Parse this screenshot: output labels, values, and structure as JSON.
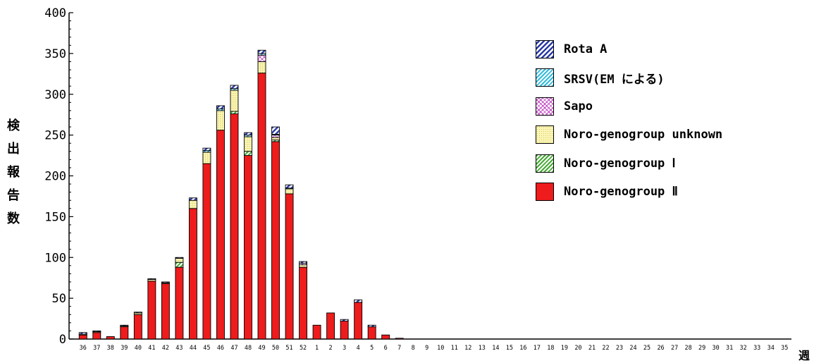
{
  "chart_data": {
    "type": "bar",
    "stacked": true,
    "ylabel": "検出報告数",
    "xunit": "週",
    "ylim": [
      0,
      400
    ],
    "yticks": [
      0,
      50,
      100,
      150,
      200,
      250,
      300,
      350,
      400
    ],
    "categories": [
      "36",
      "37",
      "38",
      "39",
      "40",
      "41",
      "42",
      "43",
      "44",
      "45",
      "46",
      "47",
      "48",
      "49",
      "50",
      "51",
      "52",
      "1",
      "2",
      "3",
      "4",
      "5",
      "6",
      "7",
      "8",
      "9",
      "10",
      "11",
      "12",
      "13",
      "14",
      "15",
      "16",
      "17",
      "18",
      "19",
      "20",
      "21",
      "22",
      "23",
      "24",
      "25",
      "26",
      "27",
      "28",
      "29",
      "30",
      "31",
      "32",
      "33",
      "34",
      "35"
    ],
    "series": [
      {
        "name": "Noro-genogroup Ⅱ",
        "color": "#ee2020",
        "pattern": "solid",
        "values": [
          5,
          8,
          3,
          15,
          30,
          71,
          68,
          88,
          160,
          215,
          256,
          276,
          225,
          326,
          242,
          178,
          88,
          17,
          32,
          22,
          45,
          15,
          5,
          1,
          0,
          0,
          0,
          0,
          0,
          0,
          0,
          0,
          0,
          0,
          0,
          0,
          0,
          0,
          0,
          0,
          0,
          0,
          0,
          0,
          0,
          0,
          0,
          0,
          0,
          0,
          0,
          0
        ]
      },
      {
        "name": "Noro-genogroup Ⅰ",
        "color": "#55bb44",
        "pattern": "green",
        "values": [
          0,
          0,
          0,
          0,
          0,
          0,
          0,
          6,
          0,
          0,
          0,
          3,
          5,
          0,
          2,
          0,
          0,
          0,
          0,
          0,
          0,
          0,
          0,
          0,
          0,
          0,
          0,
          0,
          0,
          0,
          0,
          0,
          0,
          0,
          0,
          0,
          0,
          0,
          0,
          0,
          0,
          0,
          0,
          0,
          0,
          0,
          0,
          0,
          0,
          0,
          0,
          0
        ]
      },
      {
        "name": "Noro-genogroup unknown",
        "color": "#f5f0a0",
        "pattern": "yellow",
        "values": [
          1,
          1,
          0,
          1,
          2,
          2,
          1,
          5,
          10,
          14,
          24,
          26,
          18,
          14,
          3,
          6,
          3,
          0,
          0,
          0,
          0,
          0,
          0,
          0,
          0,
          0,
          0,
          0,
          0,
          0,
          0,
          0,
          0,
          0,
          0,
          0,
          0,
          0,
          0,
          0,
          0,
          0,
          0,
          0,
          0,
          0,
          0,
          0,
          0,
          0,
          0,
          0
        ]
      },
      {
        "name": "Sapo",
        "color": "#ffffff",
        "pattern": "sapo",
        "values": [
          0,
          0,
          0,
          0,
          0,
          0,
          0,
          0,
          0,
          0,
          0,
          0,
          0,
          8,
          3,
          0,
          2,
          0,
          0,
          0,
          0,
          0,
          0,
          0,
          0,
          0,
          0,
          0,
          0,
          0,
          0,
          0,
          0,
          0,
          0,
          0,
          0,
          0,
          0,
          0,
          0,
          0,
          0,
          0,
          0,
          0,
          0,
          0,
          0,
          0,
          0,
          0
        ]
      },
      {
        "name": "SRSV(EM による)",
        "color": "#55ccdd",
        "pattern": "srsv",
        "values": [
          0,
          0,
          0,
          0,
          0,
          0,
          0,
          0,
          0,
          2,
          2,
          2,
          2,
          2,
          1,
          1,
          0,
          0,
          0,
          0,
          0,
          0,
          0,
          0,
          0,
          0,
          0,
          0,
          0,
          0,
          0,
          0,
          0,
          0,
          0,
          0,
          0,
          0,
          0,
          0,
          0,
          0,
          0,
          0,
          0,
          0,
          0,
          0,
          0,
          0,
          0,
          0
        ]
      },
      {
        "name": "Rota A",
        "color": "#3344aa",
        "pattern": "rota",
        "values": [
          2,
          1,
          0,
          1,
          1,
          1,
          1,
          1,
          3,
          3,
          4,
          4,
          3,
          4,
          9,
          4,
          2,
          0,
          0,
          2,
          3,
          2,
          0,
          0,
          0,
          0,
          0,
          0,
          0,
          0,
          0,
          0,
          0,
          0,
          0,
          0,
          0,
          0,
          0,
          0,
          0,
          0,
          0,
          0,
          0,
          0,
          0,
          0,
          0,
          0,
          0,
          0
        ]
      }
    ],
    "legend_position": "top-right"
  }
}
